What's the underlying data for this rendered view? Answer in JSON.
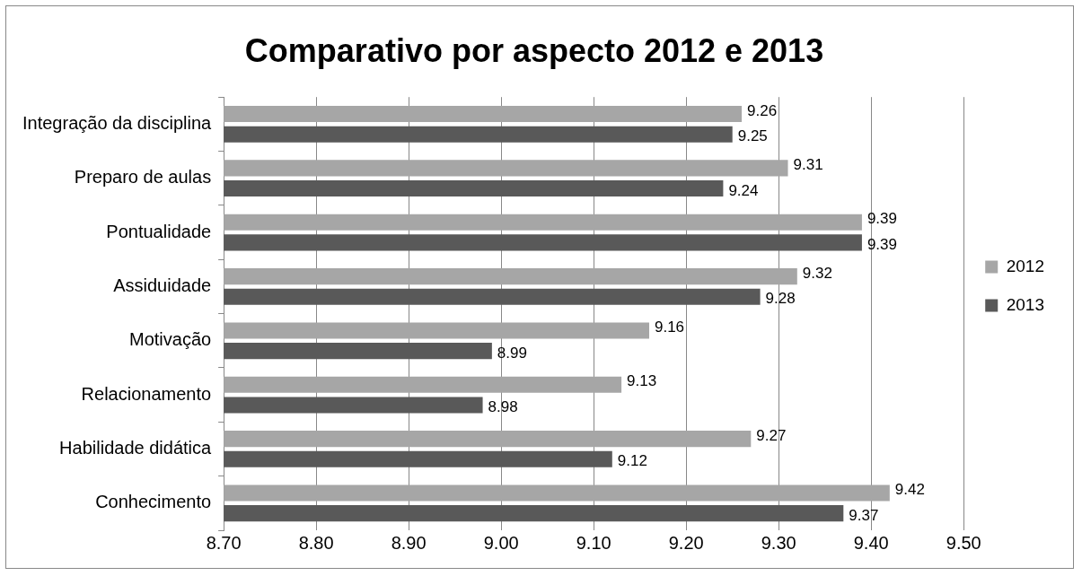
{
  "chart_data": {
    "type": "bar",
    "orientation": "horizontal",
    "title": "Comparativo por aspecto 2012 e 2013",
    "categories": [
      "Integração da disciplina",
      "Preparo de aulas",
      "Pontualidade",
      "Assiduidade",
      "Motivação",
      "Relacionamento",
      "Habilidade didática",
      "Conhecimento"
    ],
    "series": [
      {
        "name": "2012",
        "color": "#a6a6a6",
        "values": [
          9.26,
          9.31,
          9.39,
          9.32,
          9.16,
          9.13,
          9.27,
          9.42
        ]
      },
      {
        "name": "2013",
        "color": "#595959",
        "values": [
          9.25,
          9.24,
          9.39,
          9.28,
          8.99,
          8.98,
          9.12,
          9.37
        ]
      }
    ],
    "xlim": [
      8.7,
      9.5
    ],
    "xticks": [
      {
        "value": 8.7,
        "label": "8.70"
      },
      {
        "value": 8.8,
        "label": "8.80"
      },
      {
        "value": 8.9,
        "label": "8.90"
      },
      {
        "value": 9.0,
        "label": "9.00"
      },
      {
        "value": 9.1,
        "label": "9.10"
      },
      {
        "value": 9.2,
        "label": "9.20"
      },
      {
        "value": 9.3,
        "label": "9.30"
      },
      {
        "value": 9.4,
        "label": "9.40"
      },
      {
        "value": 9.5,
        "label": "9.50"
      }
    ],
    "grid": "x",
    "legend": "right",
    "data_labels": true
  }
}
